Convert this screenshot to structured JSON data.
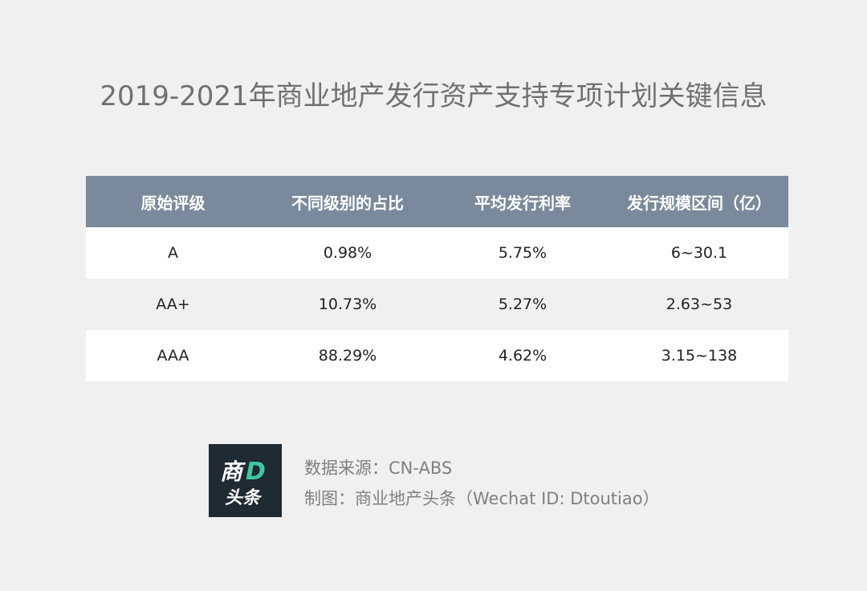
{
  "title": "2019-2021年商业地产发行资产支持专项计划关键信息",
  "chart_data": {
    "type": "table",
    "title": "2019-2021年商业地产发行资产支持专项计划关键信息",
    "columns": [
      "原始评级",
      "不同级别的占比",
      "平均发行利率",
      "发行规模区间（亿）"
    ],
    "rows": [
      [
        "A",
        "0.98%",
        "5.75%",
        "6~30.1"
      ],
      [
        "AA+",
        "10.73%",
        "5.27%",
        "2.63~53"
      ],
      [
        "AAA",
        "88.29%",
        "4.62%",
        "3.15~138"
      ]
    ]
  },
  "colors": {
    "header_bg": "#7a8a9c",
    "header_text": "#ffffff",
    "row_odd": "#ffffff",
    "row_even": "#f0f0f0",
    "page_bg": "#f0f0f0",
    "title_text": "#707070",
    "footer_text": "#808080",
    "logo_bg": "#1f2a33",
    "logo_accent": "#3ec8a0"
  },
  "logo": {
    "line1": "商",
    "letter": "D",
    "line2": "头条",
    "icon": "brand-logo-icon"
  },
  "footer": {
    "source": "数据来源：CN-ABS",
    "credit": "制图：商业地产头条（Wechat ID: Dtoutiao）"
  }
}
